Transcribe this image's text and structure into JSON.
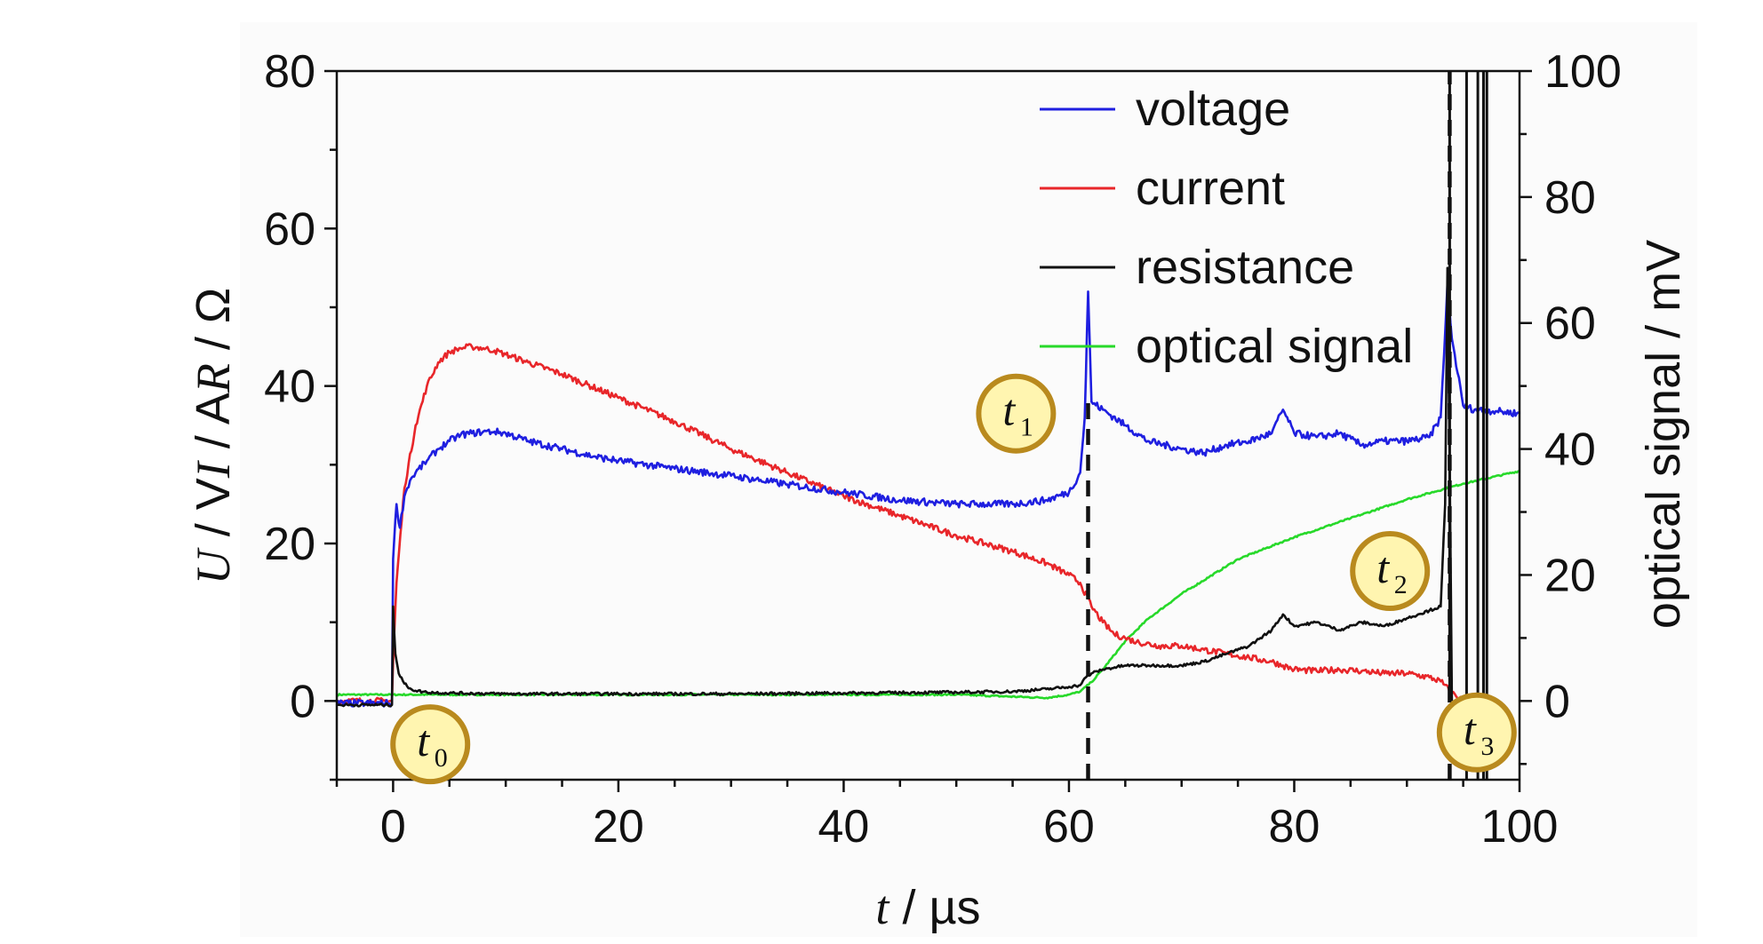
{
  "chart_data": {
    "type": "line",
    "xlabel": {
      "italic": "t",
      "rest": " / µs"
    },
    "ylabel_left": [
      {
        "italic": "U",
        "rest": " / V"
      },
      {
        "italic": "I",
        "rest": " / A"
      },
      {
        "italic": "R",
        "rest": " / Ω"
      }
    ],
    "ylabel_right": "optical signal / mV",
    "xlim": [
      -5,
      100
    ],
    "ylim_left": [
      -10,
      80
    ],
    "ylim_right": [
      -12.5,
      100
    ],
    "x_ticks": [
      "0",
      "20",
      "40",
      "60",
      "80",
      "100"
    ],
    "y_left_ticks": [
      "0",
      "20",
      "40",
      "60",
      "80"
    ],
    "y_right_ticks": [
      "0",
      "20",
      "40",
      "60",
      "80",
      "100"
    ],
    "legend_position": "top-right",
    "series": [
      {
        "name": "voltage",
        "color": "#1f1fe0",
        "axis": "left",
        "x": [
          -5,
          -0.1,
          0,
          0.3,
          0.6,
          1,
          1.5,
          2,
          3,
          4,
          5,
          6,
          7,
          8,
          9,
          10,
          12,
          15,
          18,
          20,
          25,
          30,
          35,
          40,
          45,
          50,
          55,
          58,
          60,
          61,
          61.4,
          61.7,
          62,
          63,
          65,
          67,
          70,
          72,
          74,
          76,
          78,
          79,
          80,
          82,
          84,
          86,
          88,
          90,
          92,
          93,
          93.3,
          93.6,
          94,
          95,
          96,
          98,
          100
        ],
        "y": [
          -0.3,
          -0.3,
          18,
          25,
          22,
          26,
          28,
          29,
          30.5,
          32,
          33,
          33.8,
          34,
          34.2,
          34.2,
          34,
          33,
          32,
          31,
          30.5,
          29.5,
          28.6,
          27.5,
          26.5,
          25.5,
          25,
          25,
          25.5,
          26.5,
          29,
          36,
          52,
          38,
          37,
          35,
          33,
          32,
          31.5,
          32.5,
          33,
          34,
          37,
          34,
          33.5,
          34,
          32.5,
          33,
          33,
          33.5,
          36,
          44,
          53,
          46,
          37.5,
          37,
          36.8,
          36.5
        ]
      },
      {
        "name": "current",
        "color": "#e8262a",
        "axis": "left",
        "x": [
          -5,
          -0.1,
          0,
          0.3,
          1,
          2,
          3,
          4,
          5,
          6,
          7,
          8,
          9,
          10,
          12,
          15,
          20,
          25,
          30,
          35,
          40,
          45,
          50,
          55,
          58,
          60,
          61,
          62,
          63,
          64,
          65,
          66,
          68,
          70,
          72,
          74,
          76,
          78,
          79,
          80,
          82,
          84,
          86,
          88,
          90,
          92,
          93,
          94,
          95,
          96
        ],
        "y": [
          0,
          0,
          5,
          15,
          27,
          35,
          40,
          43,
          44.3,
          44.8,
          45,
          44.8,
          44.5,
          44,
          43,
          41.5,
          38.5,
          35.5,
          32,
          29,
          26,
          23.5,
          21,
          19,
          17.5,
          16,
          15,
          12,
          10,
          8.5,
          8,
          7.5,
          7,
          7,
          6.5,
          6,
          5.5,
          5,
          4.5,
          4,
          3.8,
          4,
          3.8,
          3.5,
          3.5,
          3,
          2.5,
          1,
          0,
          -0.5
        ]
      },
      {
        "name": "resistance",
        "color": "#111111",
        "axis": "left",
        "x": [
          -5,
          -0.1,
          0,
          0.2,
          0.5,
          1,
          1.5,
          2,
          3,
          5,
          10,
          20,
          30,
          40,
          50,
          55,
          58,
          60,
          61,
          61.5,
          62,
          63,
          65,
          67,
          70,
          72,
          74,
          76,
          77,
          78,
          79,
          80,
          82,
          84,
          86,
          88,
          90,
          91,
          92,
          93,
          93.4,
          93.6,
          93.8,
          94
        ],
        "y": [
          -0.5,
          -0.5,
          12,
          6,
          3.5,
          2.2,
          1.6,
          1.3,
          1.1,
          1,
          0.9,
          0.9,
          0.9,
          1,
          1.1,
          1.2,
          1.5,
          1.8,
          2,
          3,
          3.5,
          4,
          4.5,
          4.5,
          4.5,
          5,
          6,
          7,
          8,
          9,
          11,
          9.5,
          10,
          9,
          10,
          9.5,
          10.5,
          11,
          11.5,
          12,
          25,
          55,
          30,
          0
        ]
      },
      {
        "name": "optical signal",
        "color": "#27d92a",
        "axis": "right",
        "x": [
          -5,
          0,
          10,
          20,
          30,
          40,
          50,
          58,
          60,
          61,
          62,
          63,
          65,
          67,
          70,
          75,
          80,
          85,
          90,
          95,
          100
        ],
        "y": [
          1,
          1,
          1,
          1,
          1,
          1,
          1,
          0.5,
          1,
          1.5,
          3,
          5,
          9.5,
          13,
          17,
          22.5,
          26,
          29,
          32,
          34.5,
          36.5
        ]
      }
    ],
    "vertical_lines": [
      {
        "x": 61.7,
        "style": "dashed",
        "y_from": -10,
        "y_to": 38
      },
      {
        "x": 93.8,
        "style": "dashed",
        "y_from": -10,
        "y_to": 80
      },
      {
        "x": 93.8,
        "style": "solid",
        "y_from": 0,
        "y_to": 80
      },
      {
        "x": 95.3,
        "style": "solid",
        "y_from": -10,
        "y_to": 80
      },
      {
        "x": 96.3,
        "style": "solid",
        "y_from": -10,
        "y_to": 80
      },
      {
        "x": 96.8,
        "style": "solid",
        "y_from": -10,
        "y_to": 80
      },
      {
        "x": 97.1,
        "style": "solid",
        "y_from": -10,
        "y_to": 80
      }
    ],
    "annotations": [
      {
        "letter": "t",
        "sub": "0",
        "x": 3.3,
        "y": -5.5
      },
      {
        "letter": "t",
        "sub": "1",
        "x": 55.3,
        "y": 36.5
      },
      {
        "letter": "t",
        "sub": "2",
        "x": 88.5,
        "y": 16.5
      },
      {
        "letter": "t",
        "sub": "3",
        "x": 96.2,
        "y": -4
      }
    ],
    "marker_colors": {
      "fill": "#fff5b0",
      "stroke": "#b98a1e"
    }
  }
}
